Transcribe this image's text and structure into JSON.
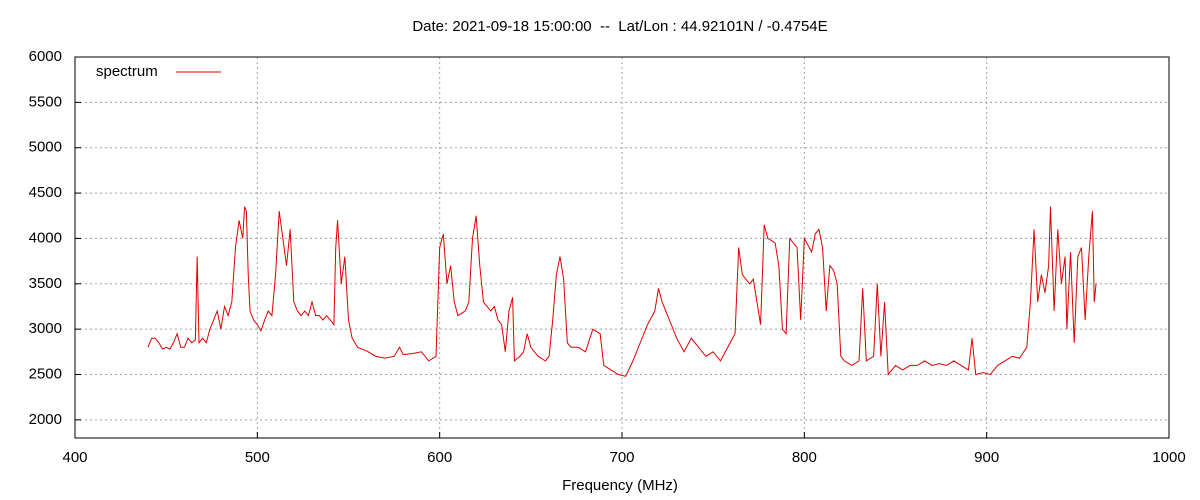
{
  "chart_data": {
    "type": "line",
    "title": "Date: 2021-09-18 15:00:00  --  Lat/Lon : 44.92101N / -0.4754E",
    "x_label": "Frequency (MHz)",
    "xlim": [
      400,
      1000
    ],
    "xticks": [
      400,
      500,
      600,
      700,
      800,
      900,
      1000
    ],
    "ylim": [
      1800,
      6000
    ],
    "yticks": [
      2000,
      2500,
      3000,
      3500,
      4000,
      4500,
      5000,
      5500,
      6000
    ],
    "grid": true,
    "legend": "top-left",
    "x": [
      440,
      442,
      444,
      446,
      448,
      450,
      452,
      454,
      456,
      458,
      460,
      462,
      464,
      466,
      467,
      468,
      470,
      472,
      474,
      476,
      478,
      480,
      482,
      484,
      486,
      488,
      490,
      492,
      493,
      494,
      495,
      496,
      498,
      500,
      502,
      504,
      506,
      508,
      510,
      512,
      514,
      516,
      518,
      520,
      522,
      524,
      526,
      528,
      530,
      532,
      534,
      536,
      538,
      540,
      542,
      543,
      544,
      546,
      548,
      550,
      552,
      555,
      560,
      565,
      570,
      575,
      578,
      580,
      585,
      590,
      594,
      598,
      600,
      602,
      604,
      606,
      608,
      610,
      614,
      616,
      618,
      620,
      622,
      624,
      626,
      628,
      630,
      632,
      634,
      636,
      638,
      640,
      641,
      644,
      646,
      648,
      650,
      654,
      658,
      660,
      662,
      664,
      666,
      668,
      670,
      672,
      676,
      680,
      684,
      688,
      690,
      694,
      698,
      702,
      706,
      710,
      714,
      718,
      720,
      722,
      726,
      730,
      734,
      738,
      742,
      746,
      750,
      754,
      758,
      762,
      764,
      766,
      770,
      772,
      774,
      776,
      778,
      780,
      784,
      786,
      788,
      790,
      792,
      796,
      798,
      800,
      804,
      806,
      808,
      810,
      812,
      814,
      816,
      818,
      820,
      822,
      826,
      830,
      832,
      834,
      838,
      840,
      842,
      844,
      846,
      850,
      854,
      858,
      862,
      866,
      870,
      874,
      878,
      882,
      886,
      890,
      892,
      894,
      898,
      902,
      906,
      910,
      914,
      918,
      922,
      924,
      926,
      928,
      930,
      932,
      934,
      935,
      937,
      939,
      941,
      943,
      944,
      946,
      948,
      950,
      952,
      954,
      956,
      958,
      959,
      960
    ],
    "series": [
      {
        "name": "spectrum",
        "color": "#e00000",
        "values": [
          2800,
          2900,
          2900,
          2850,
          2780,
          2800,
          2780,
          2850,
          2950,
          2800,
          2800,
          2900,
          2850,
          2880,
          3800,
          2850,
          2900,
          2850,
          3000,
          3100,
          3200,
          3000,
          3250,
          3150,
          3300,
          3900,
          4200,
          4000,
          4350,
          4300,
          3600,
          3200,
          3100,
          3050,
          2980,
          3100,
          3200,
          3150,
          3600,
          4300,
          4000,
          3700,
          4100,
          3300,
          3200,
          3150,
          3200,
          3150,
          3300,
          3150,
          3150,
          3100,
          3150,
          3100,
          3050,
          3900,
          4200,
          3500,
          3800,
          3100,
          2900,
          2800,
          2760,
          2700,
          2680,
          2700,
          2800,
          2720,
          2730,
          2750,
          2650,
          2700,
          3900,
          4050,
          3500,
          3700,
          3300,
          3150,
          3200,
          3300,
          4000,
          4250,
          3700,
          3300,
          3250,
          3200,
          3250,
          3100,
          3050,
          2750,
          3200,
          3350,
          2650,
          2700,
          2750,
          2950,
          2800,
          2700,
          2650,
          2700,
          3100,
          3600,
          3800,
          3550,
          2850,
          2800,
          2800,
          2750,
          3000,
          2950,
          2600,
          2550,
          2500,
          2480,
          2650,
          2850,
          3050,
          3200,
          3450,
          3300,
          3100,
          2900,
          2750,
          2900,
          2800,
          2700,
          2750,
          2650,
          2800,
          2950,
          3900,
          3600,
          3500,
          3550,
          3300,
          3050,
          4150,
          4000,
          3950,
          3700,
          3000,
          2950,
          4000,
          3900,
          3100,
          4000,
          3850,
          4050,
          4100,
          3900,
          3200,
          3700,
          3650,
          3500,
          2700,
          2650,
          2600,
          2650,
          3450,
          2650,
          2700,
          3500,
          2700,
          3300,
          2500,
          2600,
          2550,
          2600,
          2600,
          2650,
          2600,
          2620,
          2600,
          2650,
          2600,
          2550,
          2900,
          2500,
          2520,
          2500,
          2600,
          2650,
          2700,
          2680,
          2800,
          3300,
          4100,
          3300,
          3600,
          3400,
          3700,
          4350,
          3200,
          4100,
          3500,
          3800,
          3000,
          3850,
          2850,
          3800,
          3900,
          3100,
          3800,
          4300,
          3300,
          3500
        ]
      }
    ]
  }
}
